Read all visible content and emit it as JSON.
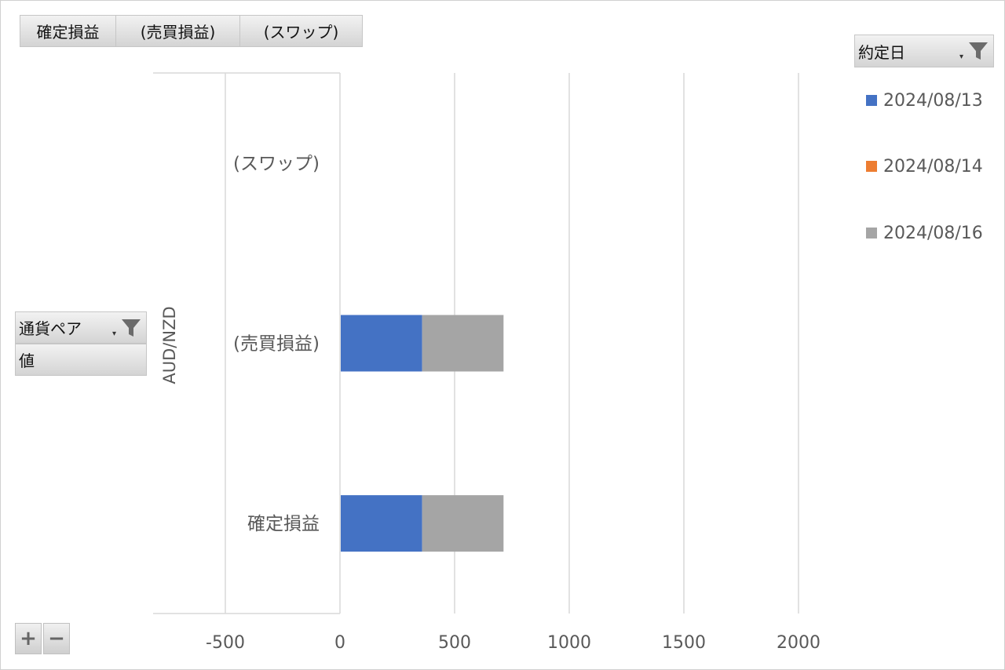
{
  "value_fields": [
    "確定損益",
    "(売買損益)",
    "(スワップ)"
  ],
  "legend_field": {
    "label": "約定日",
    "icon": "filter-funnel-icon"
  },
  "axis_field": {
    "label": "通貨ペア",
    "icon": "filter-funnel-icon"
  },
  "values_field": {
    "label": "値"
  },
  "zoom_controls": {
    "expand": "+",
    "collapse": "−"
  },
  "colors": {
    "2024/08/13": "#4472c4",
    "2024/08/14": "#ed7d31",
    "2024/08/16": "#a5a5a5",
    "grid": "#d9d9d9"
  },
  "chart_data": {
    "type": "bar",
    "orientation": "horizontal",
    "stacked": true,
    "group_label": "AUD/NZD",
    "categories": [
      "確定損益",
      "(売買損益)",
      "(スワップ)"
    ],
    "series": [
      {
        "name": "2024/08/13",
        "values": [
          355,
          355,
          0
        ]
      },
      {
        "name": "2024/08/14",
        "values": [
          0,
          0,
          0
        ]
      },
      {
        "name": "2024/08/16",
        "values": [
          355,
          355,
          0
        ]
      }
    ],
    "xlim": [
      -500,
      2000
    ],
    "xticks": [
      "-500",
      "0",
      "500",
      "1000",
      "1500",
      "2000"
    ],
    "grid": true,
    "legend_position": "right"
  }
}
